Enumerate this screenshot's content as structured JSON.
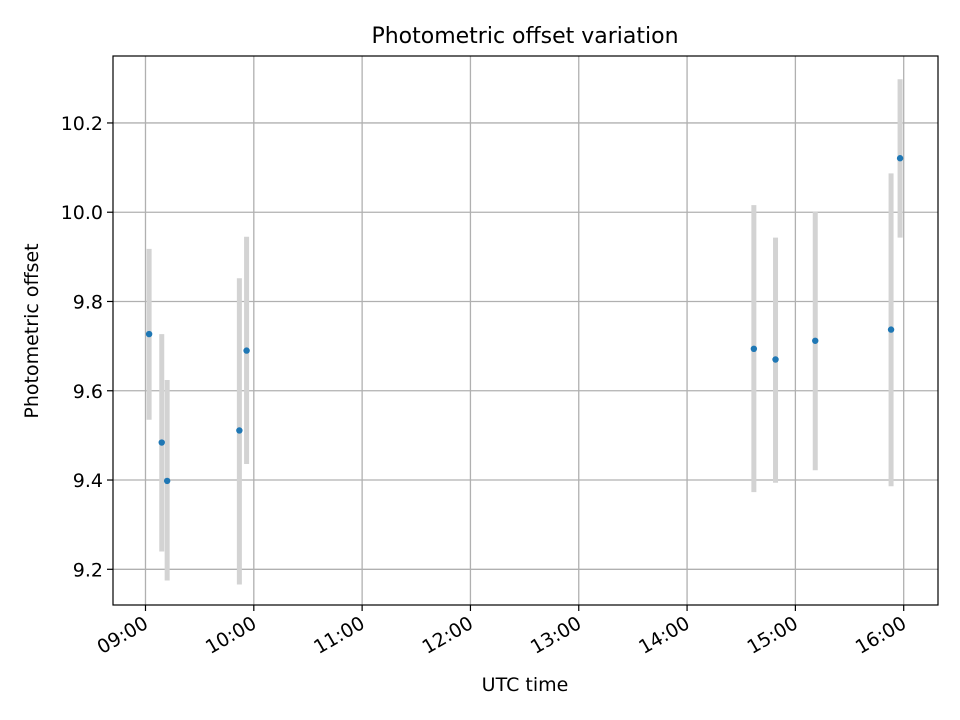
{
  "chart_data": {
    "type": "scatter",
    "title": "Photometric offset variation",
    "xlabel": "UTC time",
    "ylabel": "Photometric offset",
    "xlim": [
      "08:42",
      "16:19"
    ],
    "ylim": [
      9.12,
      10.35
    ],
    "x_ticks": [
      "09:00",
      "10:00",
      "11:00",
      "12:00",
      "13:00",
      "14:00",
      "15:00",
      "16:00"
    ],
    "y_ticks": [
      "9.2",
      "9.4",
      "9.6",
      "9.8",
      "10.0",
      "10.2"
    ],
    "grid": true,
    "colors": {
      "point": "#1f77b4",
      "errorbar": "#d3d3d3",
      "grid": "#b0b0b0"
    },
    "points": [
      {
        "time": "09:02",
        "value": 9.727,
        "low": 9.535,
        "high": 9.918
      },
      {
        "time": "09:09",
        "value": 9.484,
        "low": 9.24,
        "high": 9.727
      },
      {
        "time": "09:12",
        "value": 9.398,
        "low": 9.175,
        "high": 9.624
      },
      {
        "time": "09:52",
        "value": 9.511,
        "low": 9.166,
        "high": 9.852
      },
      {
        "time": "09:56",
        "value": 9.69,
        "low": 9.436,
        "high": 9.945
      },
      {
        "time": "14:37",
        "value": 9.694,
        "low": 9.373,
        "high": 10.016
      },
      {
        "time": "14:49",
        "value": 9.67,
        "low": 9.394,
        "high": 9.943
      },
      {
        "time": "15:11",
        "value": 9.712,
        "low": 9.422,
        "high": 10.001
      },
      {
        "time": "15:53",
        "value": 9.737,
        "low": 9.386,
        "high": 10.087
      },
      {
        "time": "15:58",
        "value": 10.121,
        "low": 9.943,
        "high": 10.298
      }
    ]
  }
}
